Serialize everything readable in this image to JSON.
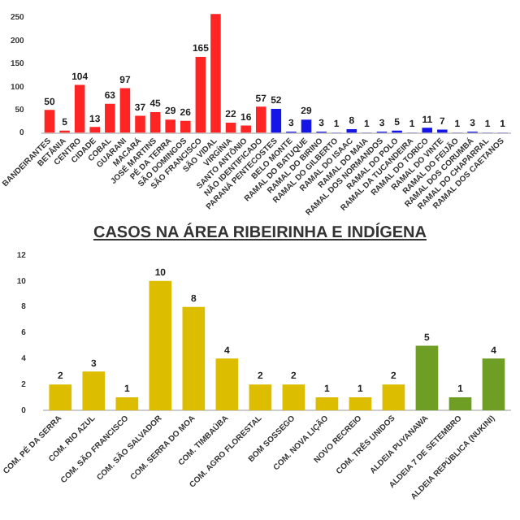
{
  "chart_data": [
    {
      "type": "bar",
      "categories": [
        "BANDEIRANTES",
        "BETÂNIA",
        "CENTRO",
        "CIDADE",
        "COBAL",
        "GUARANI",
        "MACARÁ",
        "JOSÉ MARTINS",
        "PÉ DA TERRA",
        "SÃO DOMINGOS",
        "SÃO FRANCISCO",
        "SÃO VIDAL",
        "VIRGÍNIA",
        "SANTO ANTÔNIO",
        "NÃO IDENTIFICADO",
        "PARANÁ PENTECOSTES",
        "BELO MONTE",
        "RAMAL DO BATUQUE",
        "RAMAL DO BIRINO",
        "RAMAL DO GILBERTO",
        "RAMAL DO ISAAC",
        "RAMAL DO MAIA",
        "RAMAL DOS NORMANDOS",
        "RAMAL DO POLO",
        "RAMAL DA TUCANDEIRA",
        "RAMAL DO TORICO",
        "RAMAL DO VINTE",
        "RAMAL DO FEIJÃO",
        "RAMAL DOS CORUMBÁ",
        "RAMAL DO CHAPARRAL",
        "RAMAL DOS CAETANOS"
      ],
      "values": [
        50,
        5,
        104,
        13,
        63,
        97,
        37,
        45,
        29,
        26,
        165,
        258,
        22,
        16,
        57,
        52,
        3,
        29,
        3,
        1,
        8,
        1,
        3,
        5,
        1,
        11,
        7,
        1,
        3,
        1,
        1
      ],
      "colors": [
        "#ff2525",
        "#ff2525",
        "#ff2525",
        "#ff2525",
        "#ff2525",
        "#ff2525",
        "#ff2525",
        "#ff2525",
        "#ff2525",
        "#ff2525",
        "#ff2525",
        "#ff2525",
        "#ff2525",
        "#ff2525",
        "#ff2525",
        "#1515e6",
        "#1515e6",
        "#1515e6",
        "#1515e6",
        "#1515e6",
        "#1515e6",
        "#1515e6",
        "#1515e6",
        "#1515e6",
        "#1515e6",
        "#1515e6",
        "#1515e6",
        "#1515e6",
        "#1515e6",
        "#1515e6",
        "#1515e6"
      ],
      "value_labels": [
        "50",
        "5",
        "104",
        "13",
        "63",
        "97",
        "37",
        "45",
        "29",
        "26",
        "165",
        null,
        "22",
        "16",
        "57",
        "52",
        "3",
        "29",
        "3",
        "1",
        "8",
        "1",
        "3",
        "5",
        "1",
        "11",
        "7",
        "1",
        "3",
        "1",
        "1"
      ],
      "ylim": [
        0,
        260
      ],
      "yticks": [
        0,
        50,
        100,
        150,
        200,
        250
      ],
      "grid": false,
      "legend": false
    },
    {
      "type": "bar",
      "title": "CASOS NA ÁREA RIBEIRINHA E INDÍGENA",
      "categories": [
        "COM. PÉ DA SERRA",
        "COM. RIO AZUL",
        "COM. SÃO FRANCISCO",
        "COM. SÃO SALVADOR",
        "COM. SERRA DO MOA",
        "COM. TIMBAÚBA",
        "COM. AGRO FLORESTAL",
        "BOM SOSSEGO",
        "COM. NOVA LIÇÃO",
        "NOVO RECREIO",
        "COM. TRÊS UNIDOS",
        "ALDEIA PUYANAWA",
        "ALDEIA 7 DE SETEMBRO",
        "ALDEIA REPÚBLICA (NUKINI)"
      ],
      "values": [
        2,
        3,
        1,
        10,
        8,
        4,
        2,
        2,
        1,
        1,
        2,
        5,
        1,
        4
      ],
      "colors": [
        "#dcbd00",
        "#dcbd00",
        "#dcbd00",
        "#dcbd00",
        "#dcbd00",
        "#dcbd00",
        "#dcbd00",
        "#dcbd00",
        "#dcbd00",
        "#dcbd00",
        "#dcbd00",
        "#6f9e24",
        "#6f9e24",
        "#6f9e24"
      ],
      "data_labels": true,
      "ylim": [
        0,
        12
      ],
      "yticks": [
        0,
        2,
        4,
        6,
        8,
        10,
        12
      ],
      "grid": false,
      "legend": false
    }
  ]
}
